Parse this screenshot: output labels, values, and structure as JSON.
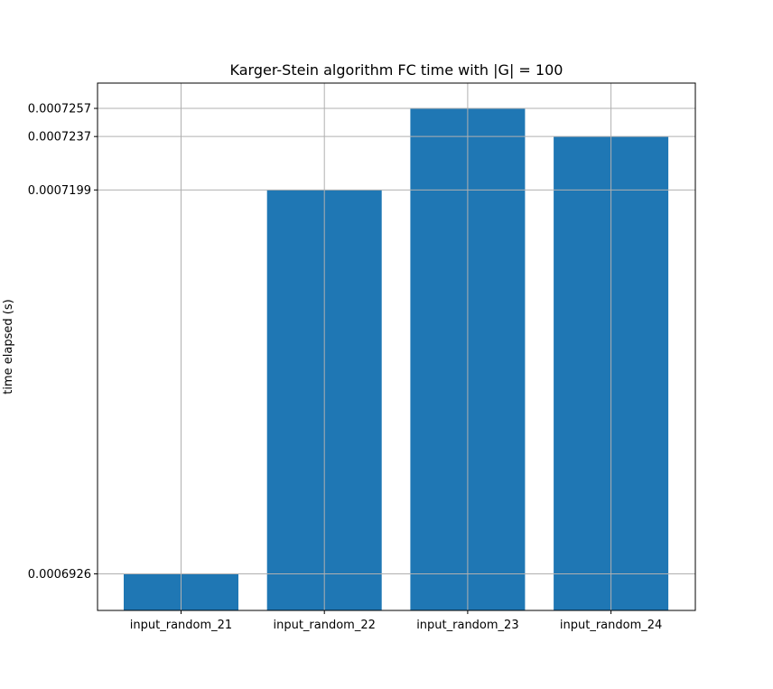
{
  "chart_data": {
    "type": "bar",
    "title": "Karger-Stein algorithm FC time with |G| = 100",
    "xlabel": "",
    "ylabel": "time elapsed (s)",
    "categories": [
      "input_random_21",
      "input_random_22",
      "input_random_23",
      "input_random_24"
    ],
    "values": [
      0.0006926,
      0.0007199,
      0.0007257,
      0.0007237
    ],
    "yticks": [
      0.0006926,
      0.0007199,
      0.0007237,
      0.0007257
    ],
    "ytick_labels": [
      "0.0006926",
      "0.0007199",
      "0.0007237",
      "0.0007257"
    ],
    "ylim": [
      0.00069,
      0.0007275
    ],
    "grid": true,
    "bar_color": "#1f77b4",
    "grid_color": "#b0b0b0"
  }
}
